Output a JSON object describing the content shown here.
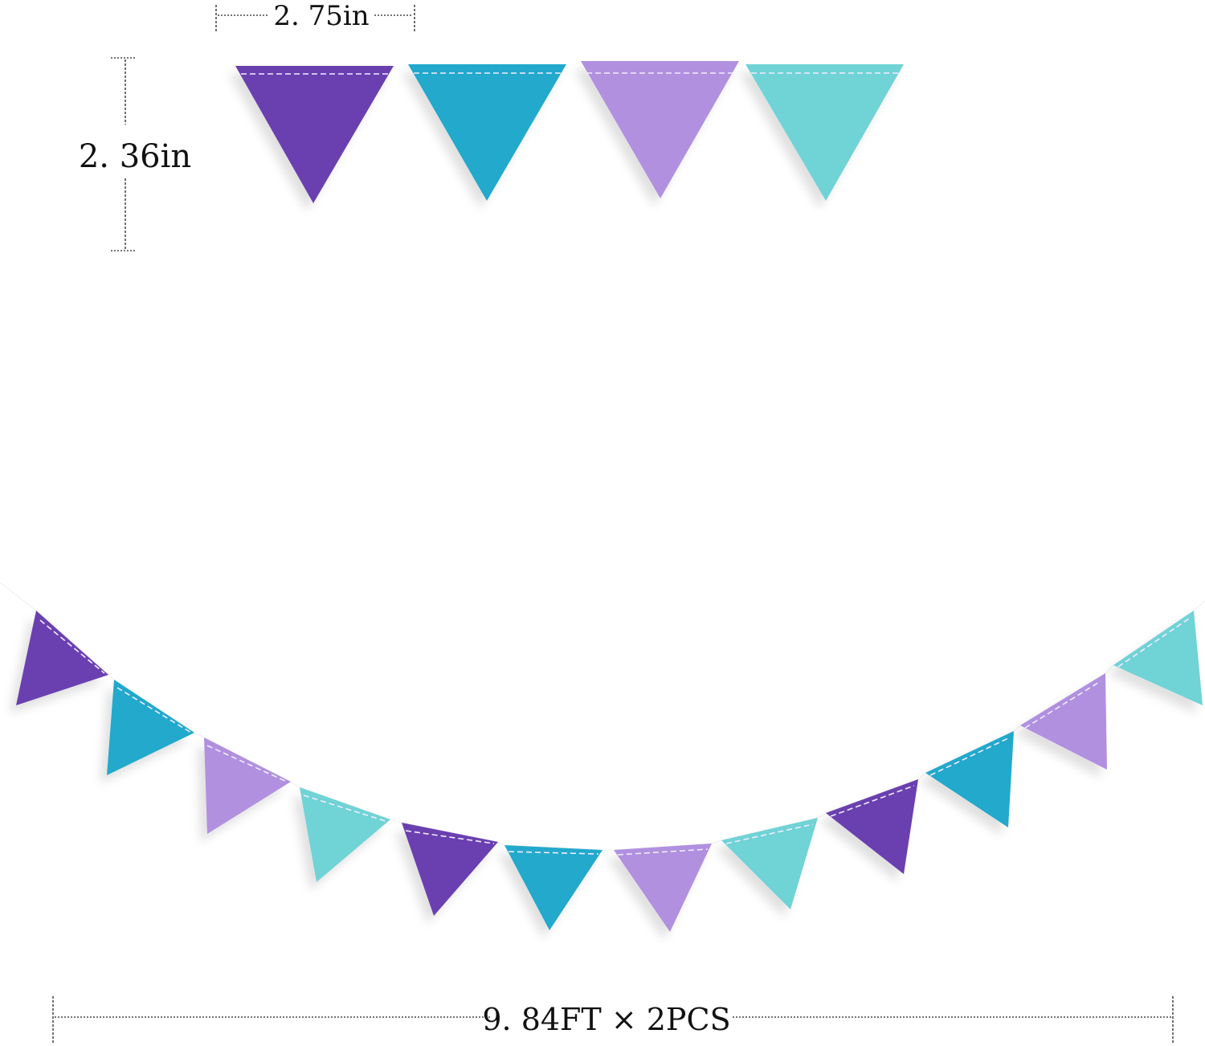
{
  "dimensions": {
    "width_label": "2. 75in",
    "height_label": "2. 36in",
    "length_label": "9. 84FT × 2PCS"
  },
  "colors": {
    "purple": "#6a3fb0",
    "blue": "#22a9cc",
    "lavender": "#b190e0",
    "turquoise": "#6fd3d6"
  },
  "pattern": [
    "purple",
    "blue",
    "lavender",
    "turquoise"
  ]
}
